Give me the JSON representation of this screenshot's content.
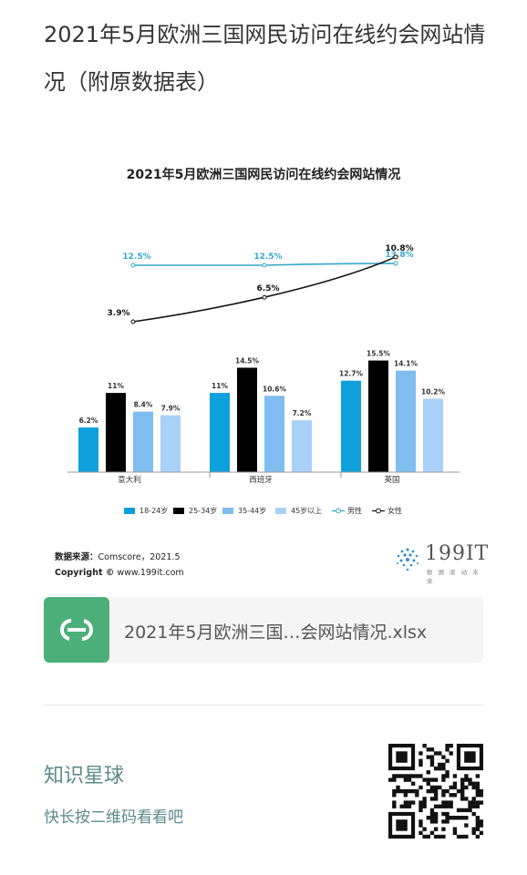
{
  "article": {
    "title": "2021年5月欧洲三国网民访问在线约会网站情况（附原数据表）"
  },
  "chart_data": {
    "type": "bar",
    "title": "2021年5月欧洲三国网民访问在线约会网站情况",
    "categories": [
      "意大利",
      "西班牙",
      "英国"
    ],
    "series": [
      {
        "name": "18-24岁",
        "values": [
          6.2,
          11,
          12.7
        ],
        "labels": [
          "6.2%",
          "11%",
          "12.7%"
        ],
        "color": "#0ea0dc"
      },
      {
        "name": "25-34岁",
        "values": [
          11,
          14.5,
          15.5
        ],
        "labels": [
          "11%",
          "14.5%",
          "15.5%"
        ],
        "color": "#000000"
      },
      {
        "name": "35-44岁",
        "values": [
          8.4,
          10.6,
          14.1
        ],
        "labels": [
          "8.4%",
          "10.6%",
          "14.1%"
        ],
        "color": "#7fbcf0"
      },
      {
        "name": "45岁以上",
        "values": [
          7.9,
          7.2,
          10.2
        ],
        "labels": [
          "7.9%",
          "7.2%",
          "10.2%"
        ],
        "color": "#a9d1f7"
      }
    ],
    "lines": [
      {
        "name": "男性",
        "values": [
          12.5,
          12.5,
          13.8
        ],
        "labels": [
          "12.5%",
          "12.5%",
          "13.8%"
        ],
        "color": "#33aacc"
      },
      {
        "name": "女性",
        "values": [
          3.9,
          6.5,
          10.8
        ],
        "labels": [
          "3.9%",
          "6.5%",
          "10.8%"
        ],
        "color": "#111111"
      }
    ],
    "legend_position": "bottom",
    "grid": false
  },
  "source": {
    "data_label": "数据来源：",
    "data_value": "Comscore，2021.5",
    "copyright_label": "Copyright ©",
    "copyright_value": "www.199it.com"
  },
  "logo": {
    "text": "199IT",
    "sub": "数 据 驱 动 未 来"
  },
  "file": {
    "name": "2021年5月欧洲三国…会网站情况.xlsx",
    "icon": "spreadsheet-s-icon",
    "icon_color": "#4caf79"
  },
  "planet": {
    "title": "知识星球",
    "subtitle": "快长按二维码看看吧"
  },
  "qr": {
    "icon": "qr-code-icon"
  }
}
